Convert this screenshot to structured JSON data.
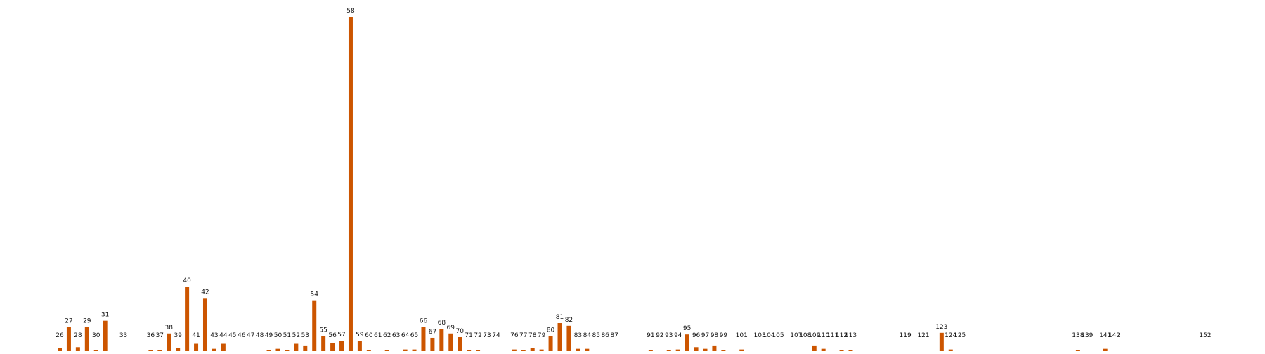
{
  "colors": {
    "bar": "#cc5500",
    "label": "#111111",
    "background": "#ffffff"
  },
  "chart_data": {
    "type": "bar",
    "title": "",
    "xlabel": "",
    "ylabel": "",
    "axes_visible": false,
    "grid": false,
    "legend": "none",
    "ylim": [
      0,
      100
    ],
    "categories": [
      26,
      27,
      28,
      29,
      30,
      31,
      33,
      36,
      37,
      38,
      39,
      40,
      41,
      42,
      43,
      44,
      45,
      46,
      47,
      48,
      49,
      50,
      51,
      52,
      53,
      54,
      55,
      56,
      57,
      58,
      59,
      60,
      61,
      62,
      63,
      64,
      65,
      66,
      67,
      68,
      69,
      70,
      71,
      72,
      73,
      74,
      76,
      77,
      78,
      79,
      80,
      81,
      82,
      83,
      84,
      85,
      86,
      87,
      91,
      92,
      93,
      94,
      95,
      96,
      97,
      98,
      99,
      101,
      103,
      104,
      105,
      107,
      108,
      109,
      110,
      111,
      112,
      113,
      119,
      121,
      123,
      124,
      125,
      138,
      139,
      141,
      142,
      152
    ],
    "values": [
      1.0,
      7.2,
      1.2,
      7.2,
      0.3,
      9.1,
      0.0,
      0.3,
      0.3,
      5.3,
      1.0,
      19.3,
      2.2,
      15.9,
      0.7,
      2.2,
      0.0,
      0.0,
      0.0,
      0.0,
      0.3,
      0.7,
      0.3,
      2.2,
      1.7,
      15.2,
      4.5,
      2.4,
      3.1,
      100.0,
      3.1,
      0.3,
      0.0,
      0.3,
      0.0,
      0.5,
      0.5,
      7.2,
      4.0,
      6.7,
      5.3,
      4.2,
      0.3,
      0.3,
      0.0,
      0.0,
      0.5,
      0.3,
      1.0,
      0.5,
      4.5,
      8.4,
      7.6,
      0.7,
      0.7,
      0.0,
      0.0,
      0.0,
      0.3,
      0.0,
      0.3,
      0.5,
      5.0,
      1.2,
      0.7,
      1.7,
      0.3,
      0.5,
      0.0,
      0.0,
      0.0,
      0.0,
      0.0,
      1.7,
      0.7,
      0.0,
      0.3,
      0.3,
      0.0,
      0.0,
      5.5,
      0.5,
      0.0,
      0.3,
      0.0,
      0.7,
      0.0,
      0.0
    ]
  }
}
